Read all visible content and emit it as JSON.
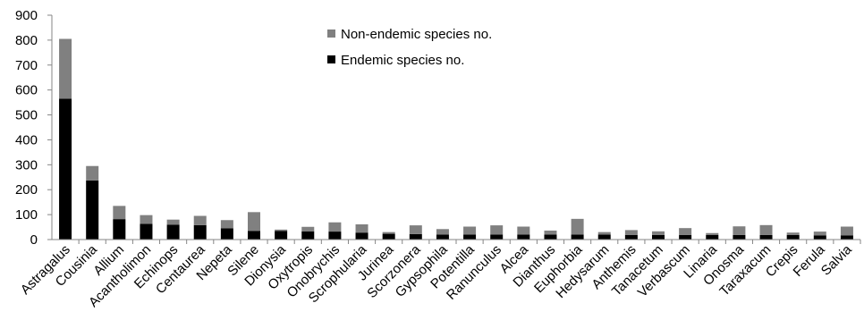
{
  "chart_data": {
    "type": "bar",
    "stacked": true,
    "categories": [
      "Astragalus",
      "Cousinia",
      "Allium",
      "Acantholimon",
      "Echinops",
      "Centaurea",
      "Nepeta",
      "Silene",
      "Dionysia",
      "Oxytropis",
      "Onobrychis",
      "Scrophularia",
      "Jurinea",
      "Scorzonera",
      "Gypsophila",
      "Potentilla",
      "Ranunculus",
      "Alcea",
      "Dianthus",
      "Euphorbia",
      "Hedysarum",
      "Anthemis",
      "Tanacetum",
      "Verbascum",
      "Linaria",
      "Onosma",
      "Taraxacum",
      "Crepis",
      "Ferula",
      "Salvia"
    ],
    "series": [
      {
        "name": "Endemic species no.",
        "color": "#000000",
        "values": [
          565,
          237,
          82,
          63,
          60,
          58,
          45,
          35,
          35,
          33,
          32,
          28,
          23,
          22,
          20,
          20,
          20,
          20,
          20,
          20,
          20,
          18,
          18,
          18,
          18,
          18,
          18,
          18,
          17,
          17
        ]
      },
      {
        "name": "Non-endemic species no.",
        "color": "#808080",
        "values": [
          240,
          58,
          53,
          35,
          20,
          37,
          33,
          75,
          5,
          18,
          37,
          33,
          7,
          35,
          22,
          32,
          37,
          32,
          16,
          63,
          10,
          20,
          15,
          28,
          8,
          35,
          40,
          10,
          15,
          35
        ]
      }
    ],
    "yticks": [
      "0",
      "100",
      "200",
      "300",
      "400",
      "500",
      "600",
      "700",
      "800",
      "900"
    ],
    "ylim": [
      0,
      900
    ],
    "title": "",
    "xlabel": "",
    "ylabel": "",
    "legend_position": "top-center",
    "grid": false
  }
}
